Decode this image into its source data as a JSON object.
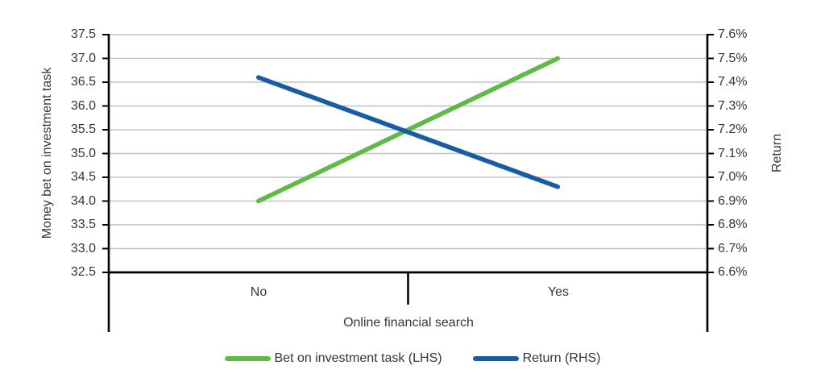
{
  "chart_data": {
    "type": "line",
    "title": "",
    "categories": [
      "No",
      "Yes"
    ],
    "xlabel": "Online financial search",
    "left_axis": {
      "label": "Money bet on investment task",
      "min": 32.5,
      "max": 37.5,
      "step": 0.5,
      "ticks": [
        "37.5",
        "37.0",
        "36.5",
        "36.0",
        "35.5",
        "35.0",
        "34.5",
        "34.0",
        "33.5",
        "33.0",
        "32.5"
      ]
    },
    "right_axis": {
      "label": "Return",
      "min": 6.6,
      "max": 7.6,
      "step": 0.1,
      "ticks": [
        "7.6%",
        "7.5%",
        "7.4%",
        "7.3%",
        "7.2%",
        "7.1%",
        "7.0%",
        "6.9%",
        "6.8%",
        "6.7%",
        "6.6%"
      ]
    },
    "series": [
      {
        "name": "Bet on investment task (LHS)",
        "axis": "left",
        "values": [
          34.0,
          37.0
        ],
        "color": "#5EBB46"
      },
      {
        "name": "Return (RHS)",
        "axis": "right",
        "values": [
          7.42,
          6.96
        ],
        "color": "#1A5CA3"
      }
    ],
    "legend_position": "bottom",
    "grid": true,
    "colors": {
      "gridline": "#C3C3C3",
      "axis": "#000000",
      "text": "#363636",
      "background": "#FFFFFF"
    }
  }
}
